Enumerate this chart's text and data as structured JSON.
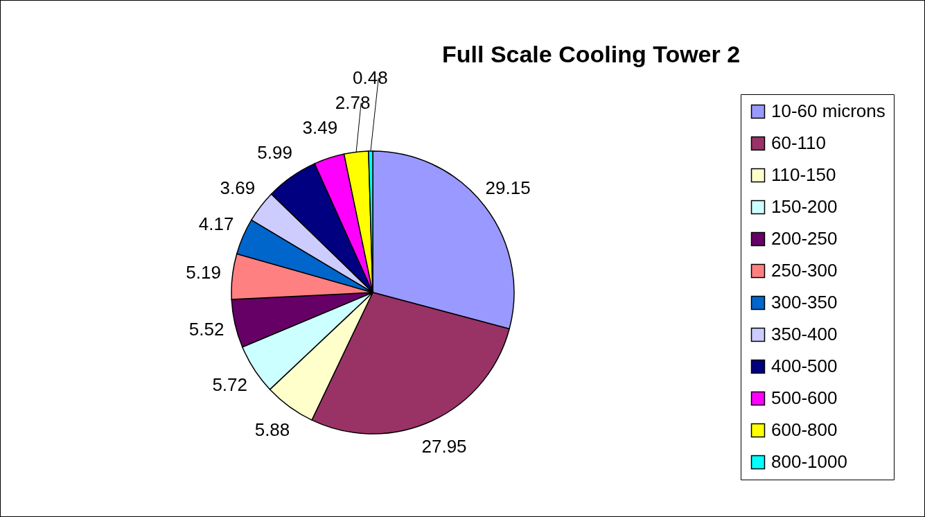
{
  "chart_data": {
    "type": "pie",
    "title": "Full Scale Cooling Tower 2",
    "categories": [
      "10-60 microns",
      "60-110",
      "110-150",
      "150-200",
      "200-250",
      "250-300",
      "300-350",
      "350-400",
      "400-500",
      "500-600",
      "600-800",
      "800-1000"
    ],
    "values": [
      29.15,
      27.95,
      5.88,
      5.72,
      5.52,
      5.19,
      4.17,
      3.69,
      5.99,
      3.49,
      2.78,
      0.48
    ],
    "colors": [
      "#9999ff",
      "#993366",
      "#ffffcc",
      "#ccffff",
      "#660066",
      "#ff8080",
      "#0066cc",
      "#ccccff",
      "#000080",
      "#ff00ff",
      "#ffff00",
      "#00ffff"
    ],
    "data_labels": true,
    "legend": "right"
  }
}
